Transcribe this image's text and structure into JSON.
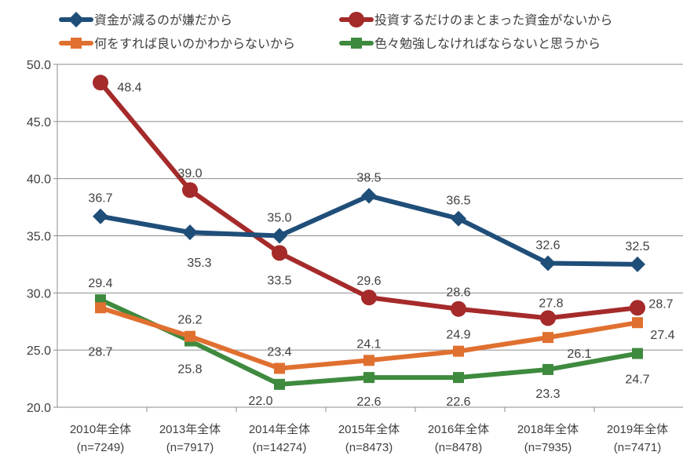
{
  "chart_data": {
    "type": "line",
    "categories": [
      "2010年全体",
      "2013年全体",
      "2014年全体",
      "2015年全体",
      "2016年全体",
      "2018年全体",
      "2019年全体"
    ],
    "category_sublabels": [
      "(n=7249)",
      "(n=7917)",
      "(n=14274)",
      "(n=8473)",
      "(n=8478)",
      "(n=7935)",
      "(n=7471)"
    ],
    "ylim": [
      20,
      50
    ],
    "yticks": [
      "20.0",
      "25.0",
      "30.0",
      "35.0",
      "40.0",
      "45.0",
      "50.0"
    ],
    "grid": true,
    "legend_position": "top",
    "series": [
      {
        "name": "資金が減るのが嫌だから",
        "color": "#1f4e79",
        "marker": "diamond",
        "values": [
          36.7,
          35.3,
          35.0,
          38.5,
          36.5,
          32.6,
          32.5
        ]
      },
      {
        "name": "投資するだけのまとまった資金がないから",
        "color": "#a52a2a",
        "marker": "circle",
        "values": [
          48.4,
          39.0,
          33.5,
          29.6,
          28.6,
          27.8,
          28.7
        ]
      },
      {
        "name": "何をすれば良いのかわからないから",
        "color": "#e07030",
        "marker": "square",
        "values": [
          28.7,
          26.2,
          23.4,
          24.1,
          24.9,
          26.1,
          27.4
        ]
      },
      {
        "name": "色々勉強しなければならないと思うから",
        "color": "#3e8a3e",
        "marker": "square",
        "values": [
          29.4,
          25.8,
          22.0,
          22.6,
          22.6,
          23.3,
          24.7
        ]
      }
    ]
  }
}
